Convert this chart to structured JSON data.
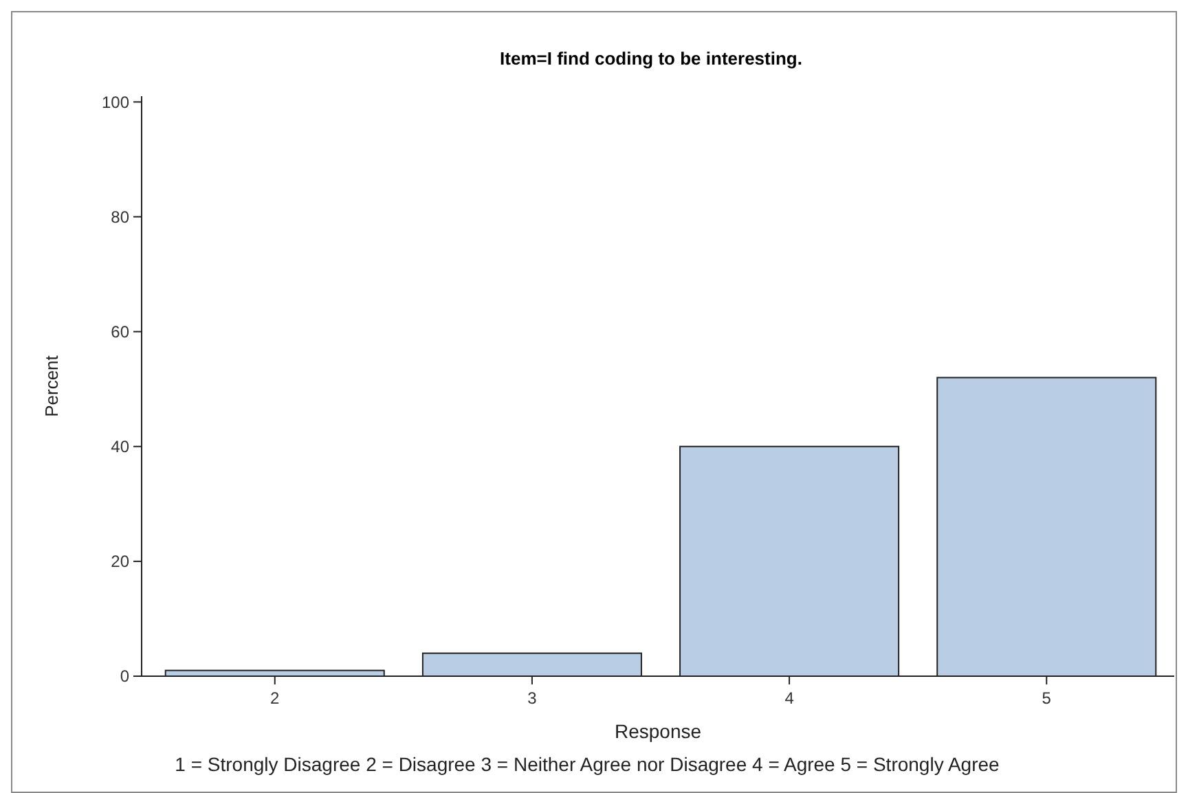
{
  "chart_data": {
    "type": "bar",
    "title": "Item=I find coding to be interesting.",
    "xlabel": "Response",
    "ylabel": "Percent",
    "categories": [
      "2",
      "3",
      "4",
      "5"
    ],
    "values": [
      1,
      4,
      40,
      52
    ],
    "color": "#b9cde5",
    "ylim": [
      0,
      101
    ],
    "yticks": [
      0,
      20,
      40,
      60,
      80,
      100
    ],
    "annotations": [
      "1 = Strongly Disagree 2 = Disagree 3 = Neither Agree nor Disagree 4 = Agree 5 = Strongly Agree"
    ]
  }
}
